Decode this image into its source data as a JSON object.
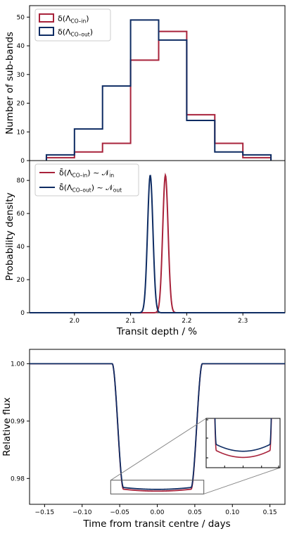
{
  "colors": {
    "in": "#a8233b",
    "out": "#0e2c63",
    "inset_box": "#555555"
  },
  "chart_data": [
    {
      "type": "bar",
      "subtype": "step-histogram",
      "ylabel": "Number of sub-bands",
      "bin_edges": [
        1.95,
        2.0,
        2.05,
        2.1,
        2.15,
        2.2,
        2.25,
        2.3,
        2.35
      ],
      "xlim": [
        1.92,
        2.375
      ],
      "ylim": [
        0,
        54
      ],
      "yticks": [
        0,
        10,
        20,
        30,
        40,
        50
      ],
      "legend_position": "top-left",
      "series": [
        {
          "key": "in",
          "name": "δ(Λ",
          "sub": "CO–in",
          "name_end": ")",
          "values": [
            1,
            3,
            6,
            35,
            45,
            16,
            6,
            1
          ]
        },
        {
          "key": "out",
          "name": "δ(Λ",
          "sub": "CO–out",
          "name_end": ")",
          "values": [
            2,
            11,
            26,
            49,
            42,
            14,
            3,
            2
          ]
        }
      ]
    },
    {
      "type": "line",
      "ylabel": "Probability density",
      "xlabel": "Transit depth / %",
      "xlim": [
        1.92,
        2.375
      ],
      "ylim": [
        0,
        92
      ],
      "xticks": [
        "2.0",
        "2.1",
        "2.2",
        "2.3"
      ],
      "yticks": [
        0,
        20,
        40,
        60,
        80
      ],
      "legend_position": "top-left",
      "series": [
        {
          "key": "in",
          "name": "δ̄(Λ",
          "sub": "CO–in",
          "name_mid": ") ~ 𝒩",
          "sub2": "in",
          "mean": 2.162,
          "sd": 0.0048
        },
        {
          "key": "out",
          "name": "δ̄(Λ",
          "sub": "CO–out",
          "name_mid": ") ~ 𝒩",
          "sub2": "out",
          "mean": 2.135,
          "sd": 0.0048
        }
      ]
    },
    {
      "type": "line",
      "ylabel": "Relative flux",
      "xlabel": "Time from transit centre / days",
      "xlim": [
        -0.17,
        0.17
      ],
      "ylim": [
        0.9755,
        1.0025
      ],
      "xticks": [
        "−0.15",
        "−0.10",
        "−0.05",
        "0.00",
        "0.05",
        "0.10",
        "0.15"
      ],
      "yticks": [
        "1.00",
        "0.99",
        "0.98"
      ],
      "contact_times": {
        "t1": -0.06,
        "t2": -0.045,
        "t3": 0.045,
        "t4": 0.06
      },
      "inset": {
        "xlim": [
          -0.062,
          0.062
        ],
        "ylim": [
          0.9773,
          0.9797
        ]
      },
      "series": [
        {
          "key": "in",
          "depth": 0.0222
        },
        {
          "key": "out",
          "depth": 0.0219
        }
      ]
    }
  ]
}
